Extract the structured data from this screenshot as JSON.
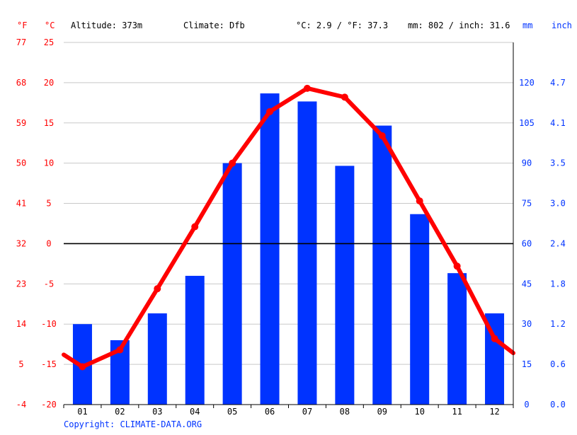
{
  "header": {
    "unit_f": "°F",
    "unit_c": "°C",
    "altitude": "Altitude: 373m",
    "climate": "Climate: Dfb",
    "temp_avg": "°C: 2.9 / °F: 37.3",
    "precip_total": "mm: 802 / inch: 31.6",
    "unit_mm": "mm",
    "unit_inch": "inch"
  },
  "footer": {
    "copyright": "Copyright: CLIMATE-DATA.ORG"
  },
  "colors": {
    "temperature": "#ff0000",
    "precipitation": "#0033ff",
    "grid": "#c8c8c8",
    "zero_line": "#000000"
  },
  "axes": {
    "f_ticks": [
      "77",
      "68",
      "59",
      "50",
      "41",
      "32",
      "23",
      "14",
      "5",
      "-4"
    ],
    "c_ticks": [
      "25",
      "20",
      "15",
      "10",
      "5",
      "0",
      "-5",
      "-10",
      "-15",
      "-20"
    ],
    "mm_ticks": [
      "120",
      "105",
      "90",
      "75",
      "60",
      "45",
      "30",
      "15",
      "0"
    ],
    "inch_ticks": [
      "4.7",
      "4.1",
      "3.5",
      "3.0",
      "2.4",
      "1.8",
      "1.2",
      "0.6",
      "0.0"
    ]
  },
  "chart_data": {
    "type": "bar",
    "categories": [
      "01",
      "02",
      "03",
      "04",
      "05",
      "06",
      "07",
      "08",
      "09",
      "10",
      "11",
      "12"
    ],
    "series": [
      {
        "type": "bar",
        "axis": "right",
        "unit": "mm",
        "values": [
          30,
          24,
          34,
          48,
          90,
          116,
          113,
          89,
          104,
          71,
          49,
          34
        ]
      },
      {
        "type": "line",
        "axis": "left",
        "unit": "°C",
        "values": [
          -15.3,
          -13.2,
          -5.6,
          2.1,
          10.0,
          16.4,
          19.3,
          18.2,
          13.4,
          5.3,
          -2.8,
          -11.8
        ],
        "start_value": -13.8,
        "end_value": -13.6
      }
    ],
    "ylim_left_c": [
      -20,
      25
    ],
    "ylim_right_mm": [
      0,
      135
    ],
    "grid": true
  }
}
